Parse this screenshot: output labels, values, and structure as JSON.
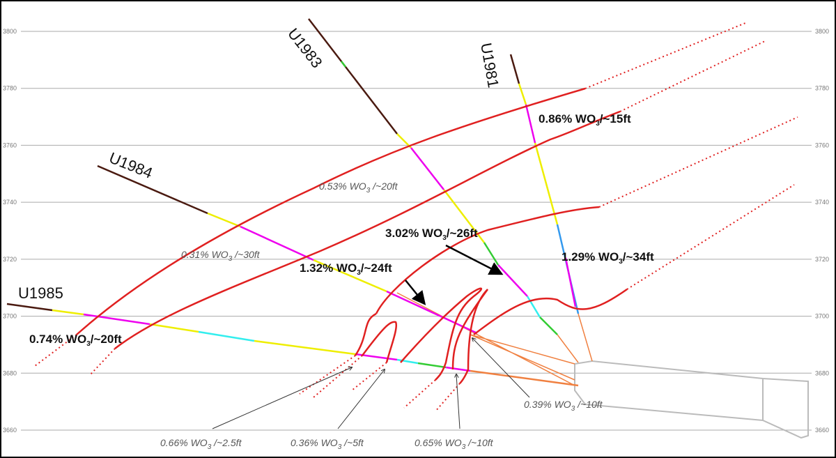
{
  "elevations": [
    3800,
    3780,
    3760,
    3740,
    3720,
    3700,
    3680,
    3660
  ],
  "drill_holes": [
    "U1983",
    "U1981",
    "U1984",
    "U1985"
  ],
  "intercepts": [
    {
      "prefix": "0.86% WO",
      "sub": "3",
      "suffix": "/~15ft"
    },
    {
      "prefix": "0.53% WO",
      "sub": "3",
      "suffix": " /~20ft"
    },
    {
      "prefix": "0.31% WO",
      "sub": "3",
      "suffix": " /~30ft"
    },
    {
      "prefix": "1.32% WO",
      "sub": "3",
      "suffix": "/~24ft"
    },
    {
      "prefix": "3.02% WO",
      "sub": "3",
      "suffix": "/~26ft"
    },
    {
      "prefix": "1.29% WO",
      "sub": "3",
      "suffix": "/~34ft"
    },
    {
      "prefix": "0.74% WO",
      "sub": "3",
      "suffix": "/~20ft"
    },
    {
      "prefix": "0.39% WO",
      "sub": "3",
      "suffix": " /~10ft"
    },
    {
      "prefix": "0.66% WO",
      "sub": "3",
      "suffix": " /~2.5ft"
    },
    {
      "prefix": "0.36% WO",
      "sub": "3",
      "suffix": " /~5ft"
    },
    {
      "prefix": "0.65% WO",
      "sub": "3",
      "suffix": " /~10ft"
    }
  ]
}
